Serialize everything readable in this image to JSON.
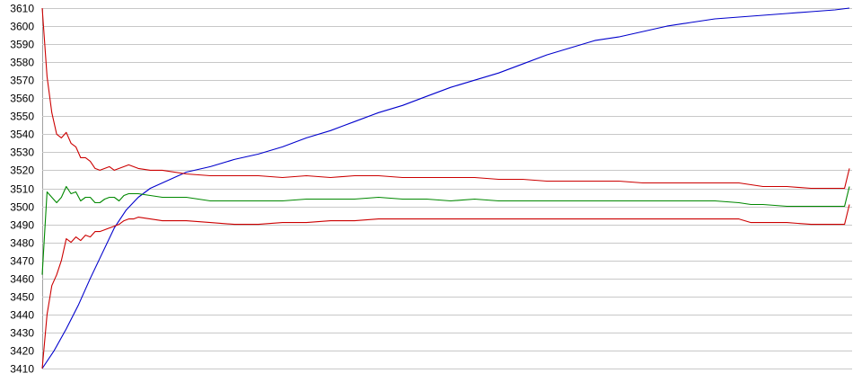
{
  "chart_data": {
    "type": "line",
    "title": "",
    "xlabel": "",
    "ylabel": "",
    "ylim": [
      3410,
      3610
    ],
    "yticks": [
      3410,
      3420,
      3430,
      3440,
      3450,
      3460,
      3470,
      3480,
      3490,
      3500,
      3510,
      3520,
      3530,
      3540,
      3550,
      3560,
      3570,
      3580,
      3590,
      3600,
      3610
    ],
    "grid": true,
    "legend": "none",
    "x_count": 180,
    "series": [
      {
        "color": "#0000cc",
        "points": [
          [
            0,
            3410
          ],
          [
            5,
            3420
          ],
          [
            10,
            3432
          ],
          [
            15,
            3445
          ],
          [
            20,
            3460
          ],
          [
            25,
            3474
          ],
          [
            30,
            3488
          ],
          [
            35,
            3498
          ],
          [
            40,
            3505
          ],
          [
            45,
            3510
          ],
          [
            50,
            3513
          ],
          [
            60,
            3519
          ],
          [
            70,
            3522
          ],
          [
            80,
            3526
          ],
          [
            90,
            3529
          ],
          [
            100,
            3533
          ],
          [
            110,
            3538
          ],
          [
            120,
            3542
          ],
          [
            130,
            3547
          ],
          [
            140,
            3552
          ],
          [
            150,
            3556
          ],
          [
            160,
            3561
          ],
          [
            170,
            3566
          ],
          [
            180,
            3570
          ],
          [
            190,
            3574
          ],
          [
            200,
            3579
          ],
          [
            210,
            3584
          ],
          [
            220,
            3588
          ],
          [
            230,
            3592
          ],
          [
            240,
            3594
          ],
          [
            250,
            3597
          ],
          [
            260,
            3600
          ],
          [
            270,
            3602
          ],
          [
            280,
            3604
          ],
          [
            290,
            3605
          ],
          [
            300,
            3606
          ],
          [
            310,
            3607
          ],
          [
            320,
            3608
          ],
          [
            330,
            3609
          ],
          [
            336,
            3610
          ]
        ]
      },
      {
        "color": "#cc0000",
        "points": [
          [
            0,
            3610
          ],
          [
            2,
            3572
          ],
          [
            4,
            3552
          ],
          [
            6,
            3540
          ],
          [
            8,
            3538
          ],
          [
            10,
            3541
          ],
          [
            12,
            3535
          ],
          [
            14,
            3533
          ],
          [
            16,
            3527
          ],
          [
            18,
            3527
          ],
          [
            20,
            3525
          ],
          [
            22,
            3521
          ],
          [
            24,
            3520
          ],
          [
            26,
            3521
          ],
          [
            28,
            3522
          ],
          [
            30,
            3520
          ],
          [
            32,
            3521
          ],
          [
            34,
            3522
          ],
          [
            36,
            3523
          ],
          [
            38,
            3522
          ],
          [
            40,
            3521
          ],
          [
            45,
            3520
          ],
          [
            50,
            3520
          ],
          [
            60,
            3518
          ],
          [
            70,
            3517
          ],
          [
            80,
            3517
          ],
          [
            90,
            3517
          ],
          [
            100,
            3516
          ],
          [
            110,
            3517
          ],
          [
            120,
            3516
          ],
          [
            130,
            3517
          ],
          [
            140,
            3517
          ],
          [
            150,
            3516
          ],
          [
            160,
            3516
          ],
          [
            170,
            3516
          ],
          [
            180,
            3516
          ],
          [
            190,
            3515
          ],
          [
            200,
            3515
          ],
          [
            210,
            3514
          ],
          [
            220,
            3514
          ],
          [
            230,
            3514
          ],
          [
            240,
            3514
          ],
          [
            250,
            3513
          ],
          [
            260,
            3513
          ],
          [
            270,
            3513
          ],
          [
            280,
            3513
          ],
          [
            290,
            3513
          ],
          [
            295,
            3512
          ],
          [
            300,
            3511
          ],
          [
            310,
            3511
          ],
          [
            320,
            3510
          ],
          [
            334,
            3510
          ],
          [
            336,
            3521
          ]
        ]
      },
      {
        "color": "#008800",
        "points": [
          [
            0,
            3462
          ],
          [
            2,
            3508
          ],
          [
            4,
            3505
          ],
          [
            6,
            3502
          ],
          [
            8,
            3505
          ],
          [
            10,
            3511
          ],
          [
            12,
            3507
          ],
          [
            14,
            3508
          ],
          [
            16,
            3503
          ],
          [
            18,
            3505
          ],
          [
            20,
            3505
          ],
          [
            22,
            3502
          ],
          [
            24,
            3502
          ],
          [
            26,
            3504
          ],
          [
            28,
            3505
          ],
          [
            30,
            3505
          ],
          [
            32,
            3503
          ],
          [
            34,
            3506
          ],
          [
            36,
            3507
          ],
          [
            38,
            3507
          ],
          [
            40,
            3507
          ],
          [
            45,
            3506
          ],
          [
            50,
            3505
          ],
          [
            60,
            3505
          ],
          [
            70,
            3503
          ],
          [
            80,
            3503
          ],
          [
            90,
            3503
          ],
          [
            100,
            3503
          ],
          [
            110,
            3504
          ],
          [
            120,
            3504
          ],
          [
            130,
            3504
          ],
          [
            140,
            3505
          ],
          [
            150,
            3504
          ],
          [
            160,
            3504
          ],
          [
            170,
            3503
          ],
          [
            180,
            3504
          ],
          [
            190,
            3503
          ],
          [
            200,
            3503
          ],
          [
            210,
            3503
          ],
          [
            220,
            3503
          ],
          [
            230,
            3503
          ],
          [
            240,
            3503
          ],
          [
            250,
            3503
          ],
          [
            260,
            3503
          ],
          [
            270,
            3503
          ],
          [
            280,
            3503
          ],
          [
            290,
            3502
          ],
          [
            295,
            3501
          ],
          [
            300,
            3501
          ],
          [
            310,
            3500
          ],
          [
            320,
            3500
          ],
          [
            334,
            3500
          ],
          [
            336,
            3511
          ]
        ]
      },
      {
        "color": "#cc0000",
        "points": [
          [
            0,
            3410
          ],
          [
            2,
            3440
          ],
          [
            4,
            3456
          ],
          [
            6,
            3462
          ],
          [
            8,
            3470
          ],
          [
            10,
            3482
          ],
          [
            12,
            3480
          ],
          [
            14,
            3483
          ],
          [
            16,
            3481
          ],
          [
            18,
            3484
          ],
          [
            20,
            3483
          ],
          [
            22,
            3486
          ],
          [
            24,
            3486
          ],
          [
            26,
            3487
          ],
          [
            28,
            3488
          ],
          [
            30,
            3489
          ],
          [
            32,
            3490
          ],
          [
            34,
            3492
          ],
          [
            36,
            3493
          ],
          [
            38,
            3493
          ],
          [
            40,
            3494
          ],
          [
            45,
            3493
          ],
          [
            50,
            3492
          ],
          [
            60,
            3492
          ],
          [
            70,
            3491
          ],
          [
            80,
            3490
          ],
          [
            90,
            3490
          ],
          [
            100,
            3491
          ],
          [
            110,
            3491
          ],
          [
            120,
            3492
          ],
          [
            130,
            3492
          ],
          [
            140,
            3493
          ],
          [
            150,
            3493
          ],
          [
            160,
            3493
          ],
          [
            170,
            3493
          ],
          [
            180,
            3493
          ],
          [
            190,
            3493
          ],
          [
            200,
            3493
          ],
          [
            210,
            3493
          ],
          [
            220,
            3493
          ],
          [
            230,
            3493
          ],
          [
            240,
            3493
          ],
          [
            250,
            3493
          ],
          [
            260,
            3493
          ],
          [
            270,
            3493
          ],
          [
            280,
            3493
          ],
          [
            290,
            3493
          ],
          [
            295,
            3491
          ],
          [
            300,
            3491
          ],
          [
            310,
            3491
          ],
          [
            320,
            3490
          ],
          [
            334,
            3490
          ],
          [
            336,
            3501
          ]
        ]
      }
    ]
  }
}
